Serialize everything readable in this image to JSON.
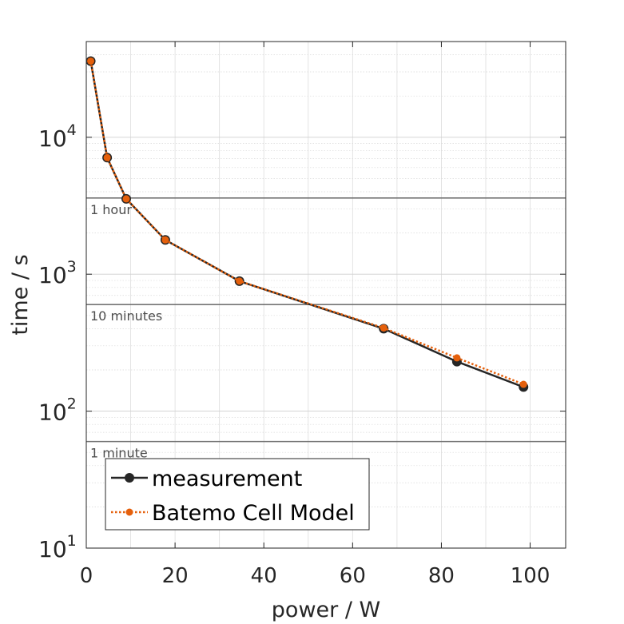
{
  "chart_data": {
    "type": "line",
    "xlabel": "power / W",
    "ylabel": "time / s",
    "x_scale": "linear",
    "y_scale": "log",
    "xlim": [
      0,
      108
    ],
    "ylim": [
      10,
      50000
    ],
    "x_ticks": [
      "0",
      "20",
      "40",
      "60",
      "80",
      "100"
    ],
    "x_tick_values": [
      0,
      20,
      40,
      60,
      80,
      100
    ],
    "y_tick_values": [
      10,
      100,
      1000,
      10000
    ],
    "y_ticks": [
      {
        "base": "10",
        "exp": "1"
      },
      {
        "base": "10",
        "exp": "2"
      },
      {
        "base": "10",
        "exp": "3"
      },
      {
        "base": "10",
        "exp": "4"
      }
    ],
    "grid": true,
    "legend_position": "bottom-left",
    "reference_lines": [
      {
        "label": "1 hour",
        "y": 3600
      },
      {
        "label": "10 minutes",
        "y": 600
      },
      {
        "label": "1 minute",
        "y": 60
      }
    ],
    "series": [
      {
        "name": "measurement",
        "color": "#262626",
        "style": "solid",
        "x": [
          1,
          4.7,
          9,
          17.8,
          34.5,
          67,
          83.5,
          98.5
        ],
        "y": [
          36000,
          7100,
          3550,
          1780,
          890,
          400,
          230,
          150
        ]
      },
      {
        "name": "Batemo Cell Model",
        "color": "#e5600c",
        "style": "dotted",
        "x": [
          1,
          4.7,
          9,
          17.8,
          34.5,
          67,
          83.5,
          98.5
        ],
        "y": [
          36000,
          7100,
          3550,
          1780,
          890,
          405,
          245,
          157
        ]
      }
    ]
  }
}
